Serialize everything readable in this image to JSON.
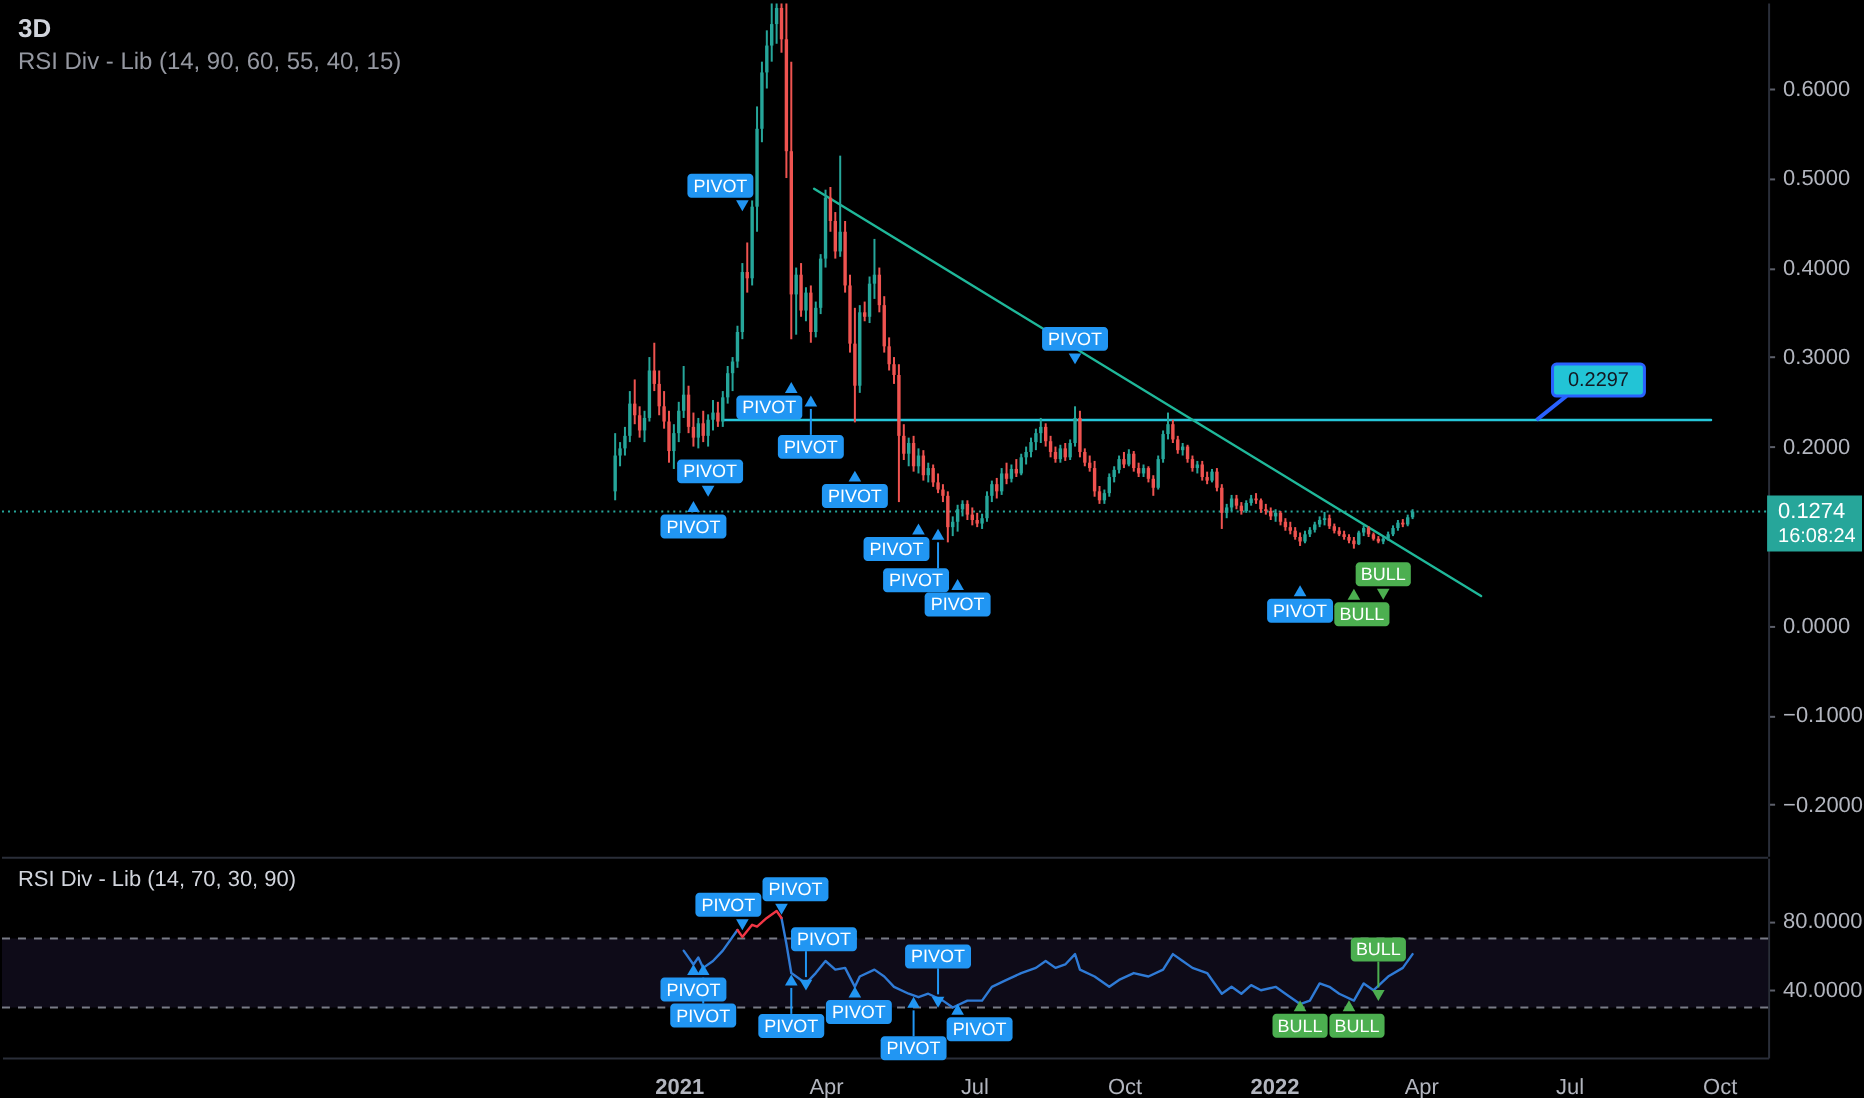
{
  "chart_data": [
    {
      "type": "candlestick",
      "title": "3D",
      "subtitle": "RSI Div - Lib (14, 90, 60, 55, 40, 15)",
      "xlim": [
        "2019-11-13",
        "2022-10-31"
      ],
      "ylim": [
        -0.257,
        0.696
      ],
      "yticks": [
        {
          "value": 0.6,
          "label": "0.6000"
        },
        {
          "value": 0.5,
          "label": "0.5000"
        },
        {
          "value": 0.4,
          "label": "0.4000"
        },
        {
          "value": 0.3,
          "label": "0.3000"
        },
        {
          "value": 0.2,
          "label": "0.2000"
        },
        {
          "value": 0,
          "label": "0.0000"
        },
        {
          "value": -0.1,
          "label": "−0.1000"
        },
        {
          "value": -0.2,
          "label": "−0.2000"
        }
      ],
      "tick_labels": "y",
      "x": [
        "2020-11-23",
        "2020-11-26",
        "2020-11-29",
        "2020-12-02",
        "2020-12-05",
        "2020-12-08",
        "2020-12-11",
        "2020-12-14",
        "2020-12-17",
        "2020-12-20",
        "2020-12-23",
        "2020-12-26",
        "2020-12-29",
        "2021-01-01",
        "2021-01-04",
        "2021-01-07",
        "2021-01-10",
        "2021-01-13",
        "2021-01-16",
        "2021-01-19",
        "2021-01-22",
        "2021-01-25",
        "2021-01-28",
        "2021-01-31",
        "2021-02-03",
        "2021-02-06",
        "2021-02-09",
        "2021-02-12",
        "2021-02-15",
        "2021-02-18",
        "2021-02-21",
        "2021-02-24",
        "2021-02-27",
        "2021-03-02",
        "2021-03-05",
        "2021-03-08",
        "2021-03-11",
        "2021-03-14",
        "2021-03-17",
        "2021-03-20",
        "2021-03-23",
        "2021-03-26",
        "2021-03-29",
        "2021-04-01",
        "2021-04-04",
        "2021-04-07",
        "2021-04-10",
        "2021-04-13",
        "2021-04-16",
        "2021-04-19",
        "2021-04-22",
        "2021-04-25",
        "2021-04-28",
        "2021-05-01",
        "2021-05-04",
        "2021-05-07",
        "2021-05-10",
        "2021-05-13",
        "2021-05-16",
        "2021-05-19",
        "2021-05-22",
        "2021-05-25",
        "2021-05-28",
        "2021-05-31",
        "2021-06-03",
        "2021-06-06",
        "2021-06-09",
        "2021-06-12",
        "2021-06-15",
        "2021-06-18",
        "2021-06-21",
        "2021-06-24",
        "2021-06-27",
        "2021-06-30",
        "2021-07-03",
        "2021-07-06",
        "2021-07-09",
        "2021-07-12",
        "2021-07-15",
        "2021-07-18",
        "2021-07-21",
        "2021-07-24",
        "2021-07-27",
        "2021-07-30",
        "2021-08-02",
        "2021-08-05",
        "2021-08-08",
        "2021-08-11",
        "2021-08-14",
        "2021-08-17",
        "2021-08-20",
        "2021-08-23",
        "2021-08-26",
        "2021-08-29",
        "2021-09-01",
        "2021-09-04",
        "2021-09-07",
        "2021-09-10",
        "2021-09-13",
        "2021-09-16",
        "2021-09-19",
        "2021-09-22",
        "2021-09-25",
        "2021-09-28",
        "2021-10-01",
        "2021-10-04",
        "2021-10-07",
        "2021-10-10",
        "2021-10-13",
        "2021-10-16",
        "2021-10-19",
        "2021-10-22",
        "2021-10-25",
        "2021-10-28",
        "2021-10-31",
        "2021-11-03",
        "2021-11-06",
        "2021-11-09",
        "2021-11-12",
        "2021-11-15",
        "2021-11-18",
        "2021-11-21",
        "2021-11-24",
        "2021-11-27",
        "2021-11-30",
        "2021-12-03",
        "2021-12-06",
        "2021-12-09",
        "2021-12-12",
        "2021-12-15",
        "2021-12-18",
        "2021-12-21",
        "2021-12-24",
        "2021-12-27",
        "2021-12-30",
        "2022-01-02",
        "2022-01-05",
        "2022-01-08",
        "2022-01-11",
        "2022-01-14",
        "2022-01-17",
        "2022-01-20",
        "2022-01-23",
        "2022-01-26",
        "2022-01-29",
        "2022-02-01",
        "2022-02-04",
        "2022-02-07",
        "2022-02-10",
        "2022-02-13",
        "2022-02-16",
        "2022-02-19",
        "2022-02-22",
        "2022-02-25",
        "2022-02-28",
        "2022-03-03",
        "2022-03-06",
        "2022-03-09",
        "2022-03-12",
        "2022-03-15",
        "2022-03-18",
        "2022-03-21",
        "2022-03-24",
        "2022-03-27"
      ],
      "ohlc": [
        [
          0.15,
          0.215,
          0.14,
          0.19
        ],
        [
          0.19,
          0.205,
          0.178,
          0.198
        ],
        [
          0.198,
          0.222,
          0.19,
          0.212
        ],
        [
          0.212,
          0.262,
          0.205,
          0.248
        ],
        [
          0.248,
          0.275,
          0.225,
          0.235
        ],
        [
          0.235,
          0.245,
          0.21,
          0.218
        ],
        [
          0.218,
          0.24,
          0.205,
          0.232
        ],
        [
          0.232,
          0.3,
          0.228,
          0.285
        ],
        [
          0.285,
          0.316,
          0.262,
          0.27
        ],
        [
          0.27,
          0.285,
          0.235,
          0.245
        ],
        [
          0.245,
          0.262,
          0.22,
          0.228
        ],
        [
          0.228,
          0.24,
          0.182,
          0.195
        ],
        [
          0.195,
          0.225,
          0.175,
          0.215
        ],
        [
          0.215,
          0.25,
          0.205,
          0.24
        ],
        [
          0.24,
          0.29,
          0.232,
          0.258
        ],
        [
          0.258,
          0.268,
          0.215,
          0.222
        ],
        [
          0.222,
          0.238,
          0.2,
          0.21
        ],
        [
          0.21,
          0.232,
          0.198,
          0.226
        ],
        [
          0.226,
          0.24,
          0.205,
          0.212
        ],
        [
          0.212,
          0.236,
          0.2,
          0.23
        ],
        [
          0.23,
          0.252,
          0.218,
          0.238
        ],
        [
          0.238,
          0.25,
          0.222,
          0.228
        ],
        [
          0.228,
          0.262,
          0.222,
          0.255
        ],
        [
          0.255,
          0.29,
          0.248,
          0.282
        ],
        [
          0.282,
          0.3,
          0.262,
          0.295
        ],
        [
          0.295,
          0.335,
          0.288,
          0.328
        ],
        [
          0.328,
          0.405,
          0.32,
          0.395
        ],
        [
          0.395,
          0.428,
          0.372,
          0.388
        ],
        [
          0.388,
          0.475,
          0.38,
          0.468
        ],
        [
          0.468,
          0.58,
          0.44,
          0.555
        ],
        [
          0.555,
          0.63,
          0.54,
          0.618
        ],
        [
          0.618,
          0.665,
          0.6,
          0.648
        ],
        [
          0.648,
          0.695,
          0.63,
          0.672
        ],
        [
          0.672,
          0.695,
          0.65,
          0.69
        ],
        [
          0.69,
          0.695,
          0.64,
          0.655
        ],
        [
          0.655,
          0.695,
          0.5,
          0.53
        ],
        [
          0.53,
          0.63,
          0.32,
          0.37
        ],
        [
          0.37,
          0.4,
          0.325,
          0.392
        ],
        [
          0.392,
          0.405,
          0.345,
          0.352
        ],
        [
          0.352,
          0.378,
          0.34,
          0.372
        ],
        [
          0.372,
          0.38,
          0.316,
          0.328
        ],
        [
          0.328,
          0.362,
          0.322,
          0.355
        ],
        [
          0.355,
          0.415,
          0.348,
          0.41
        ],
        [
          0.41,
          0.487,
          0.4,
          0.478
        ],
        [
          0.478,
          0.49,
          0.44,
          0.452
        ],
        [
          0.452,
          0.462,
          0.41,
          0.418
        ],
        [
          0.418,
          0.525,
          0.412,
          0.44
        ],
        [
          0.44,
          0.452,
          0.372,
          0.38
        ],
        [
          0.38,
          0.392,
          0.305,
          0.315
        ],
        [
          0.315,
          0.355,
          0.227,
          0.268
        ],
        [
          0.268,
          0.358,
          0.26,
          0.35
        ],
        [
          0.35,
          0.362,
          0.34,
          0.345
        ],
        [
          0.345,
          0.39,
          0.338,
          0.382
        ],
        [
          0.382,
          0.432,
          0.365,
          0.392
        ],
        [
          0.392,
          0.4,
          0.35,
          0.358
        ],
        [
          0.358,
          0.368,
          0.305,
          0.312
        ],
        [
          0.312,
          0.322,
          0.285,
          0.292
        ],
        [
          0.292,
          0.3,
          0.27,
          0.28
        ],
        [
          0.28,
          0.292,
          0.138,
          0.212
        ],
        [
          0.212,
          0.225,
          0.185,
          0.192
        ],
        [
          0.192,
          0.21,
          0.178,
          0.204
        ],
        [
          0.204,
          0.212,
          0.172,
          0.178
        ],
        [
          0.178,
          0.198,
          0.17,
          0.19
        ],
        [
          0.19,
          0.196,
          0.162,
          0.168
        ],
        [
          0.168,
          0.182,
          0.16,
          0.176
        ],
        [
          0.176,
          0.18,
          0.155,
          0.16
        ],
        [
          0.16,
          0.17,
          0.148,
          0.152
        ],
        [
          0.152,
          0.158,
          0.138,
          0.145
        ],
        [
          0.145,
          0.15,
          0.093,
          0.11
        ],
        [
          0.11,
          0.122,
          0.1,
          0.116
        ],
        [
          0.116,
          0.135,
          0.105,
          0.13
        ],
        [
          0.13,
          0.14,
          0.122,
          0.136
        ],
        [
          0.136,
          0.14,
          0.118,
          0.124
        ],
        [
          0.124,
          0.132,
          0.112,
          0.118
        ],
        [
          0.118,
          0.126,
          0.11,
          0.114
        ],
        [
          0.114,
          0.125,
          0.108,
          0.12
        ],
        [
          0.12,
          0.15,
          0.116,
          0.145
        ],
        [
          0.145,
          0.162,
          0.138,
          0.158
        ],
        [
          0.158,
          0.165,
          0.142,
          0.15
        ],
        [
          0.15,
          0.176,
          0.146,
          0.17
        ],
        [
          0.17,
          0.182,
          0.158,
          0.164
        ],
        [
          0.164,
          0.18,
          0.16,
          0.175
        ],
        [
          0.175,
          0.186,
          0.166,
          0.17
        ],
        [
          0.17,
          0.192,
          0.168,
          0.188
        ],
        [
          0.188,
          0.2,
          0.18,
          0.194
        ],
        [
          0.194,
          0.21,
          0.188,
          0.205
        ],
        [
          0.205,
          0.22,
          0.196,
          0.215
        ],
        [
          0.215,
          0.232,
          0.204,
          0.222
        ],
        [
          0.222,
          0.226,
          0.2,
          0.206
        ],
        [
          0.206,
          0.212,
          0.188,
          0.194
        ],
        [
          0.194,
          0.2,
          0.182,
          0.186
        ],
        [
          0.186,
          0.202,
          0.182,
          0.198
        ],
        [
          0.198,
          0.204,
          0.184,
          0.188
        ],
        [
          0.188,
          0.208,
          0.185,
          0.204
        ],
        [
          0.204,
          0.245,
          0.2,
          0.232
        ],
        [
          0.232,
          0.24,
          0.188,
          0.194
        ],
        [
          0.194,
          0.198,
          0.178,
          0.182
        ],
        [
          0.182,
          0.19,
          0.172,
          0.176
        ],
        [
          0.176,
          0.184,
          0.144,
          0.15
        ],
        [
          0.15,
          0.156,
          0.136,
          0.14
        ],
        [
          0.14,
          0.152,
          0.136,
          0.148
        ],
        [
          0.148,
          0.17,
          0.144,
          0.166
        ],
        [
          0.166,
          0.178,
          0.16,
          0.174
        ],
        [
          0.174,
          0.19,
          0.17,
          0.186
        ],
        [
          0.186,
          0.194,
          0.176,
          0.18
        ],
        [
          0.18,
          0.197,
          0.178,
          0.192
        ],
        [
          0.192,
          0.195,
          0.172,
          0.176
        ],
        [
          0.176,
          0.182,
          0.166,
          0.17
        ],
        [
          0.17,
          0.18,
          0.166,
          0.176
        ],
        [
          0.176,
          0.178,
          0.16,
          0.164
        ],
        [
          0.164,
          0.168,
          0.145,
          0.154
        ],
        [
          0.154,
          0.19,
          0.152,
          0.186
        ],
        [
          0.186,
          0.218,
          0.182,
          0.214
        ],
        [
          0.214,
          0.238,
          0.208,
          0.225
        ],
        [
          0.225,
          0.23,
          0.204,
          0.208
        ],
        [
          0.208,
          0.212,
          0.192,
          0.196
        ],
        [
          0.196,
          0.204,
          0.19,
          0.2
        ],
        [
          0.2,
          0.202,
          0.182,
          0.186
        ],
        [
          0.186,
          0.19,
          0.172,
          0.176
        ],
        [
          0.176,
          0.184,
          0.17,
          0.18
        ],
        [
          0.18,
          0.184,
          0.162,
          0.166
        ],
        [
          0.166,
          0.172,
          0.158,
          0.162
        ],
        [
          0.162,
          0.175,
          0.16,
          0.172
        ],
        [
          0.172,
          0.176,
          0.15,
          0.154
        ],
        [
          0.154,
          0.158,
          0.108,
          0.126
        ],
        [
          0.126,
          0.136,
          0.12,
          0.132
        ],
        [
          0.132,
          0.146,
          0.128,
          0.142
        ],
        [
          0.142,
          0.146,
          0.13,
          0.134
        ],
        [
          0.134,
          0.138,
          0.124,
          0.128
        ],
        [
          0.128,
          0.14,
          0.126,
          0.137
        ],
        [
          0.137,
          0.146,
          0.134,
          0.142
        ],
        [
          0.142,
          0.148,
          0.136,
          0.14
        ],
        [
          0.14,
          0.142,
          0.126,
          0.13
        ],
        [
          0.13,
          0.136,
          0.124,
          0.128
        ],
        [
          0.128,
          0.132,
          0.118,
          0.122
        ],
        [
          0.122,
          0.13,
          0.116,
          0.126
        ],
        [
          0.126,
          0.128,
          0.112,
          0.116
        ],
        [
          0.116,
          0.12,
          0.106,
          0.11
        ],
        [
          0.11,
          0.116,
          0.102,
          0.106
        ],
        [
          0.106,
          0.11,
          0.096,
          0.099
        ],
        [
          0.099,
          0.104,
          0.089,
          0.094
        ],
        [
          0.094,
          0.106,
          0.092,
          0.102
        ],
        [
          0.102,
          0.11,
          0.099,
          0.107
        ],
        [
          0.107,
          0.116,
          0.104,
          0.113
        ],
        [
          0.113,
          0.122,
          0.11,
          0.118
        ],
        [
          0.118,
          0.127,
          0.112,
          0.12
        ],
        [
          0.12,
          0.124,
          0.108,
          0.111
        ],
        [
          0.111,
          0.114,
          0.103,
          0.106
        ],
        [
          0.106,
          0.11,
          0.1,
          0.102
        ],
        [
          0.102,
          0.106,
          0.096,
          0.099
        ],
        [
          0.099,
          0.102,
          0.092,
          0.095
        ],
        [
          0.095,
          0.099,
          0.086,
          0.091
        ],
        [
          0.091,
          0.106,
          0.09,
          0.104
        ],
        [
          0.104,
          0.112,
          0.1,
          0.109
        ],
        [
          0.109,
          0.111,
          0.099,
          0.102
        ],
        [
          0.102,
          0.104,
          0.095,
          0.097
        ],
        [
          0.097,
          0.1,
          0.092,
          0.094
        ],
        [
          0.094,
          0.1,
          0.091,
          0.097
        ],
        [
          0.097,
          0.105,
          0.095,
          0.102
        ],
        [
          0.102,
          0.112,
          0.1,
          0.109
        ],
        [
          0.109,
          0.118,
          0.106,
          0.115
        ],
        [
          0.115,
          0.119,
          0.11,
          0.113
        ],
        [
          0.113,
          0.124,
          0.111,
          0.121
        ],
        [
          0.121,
          0.13,
          0.119,
          0.1274
        ]
      ],
      "colors": [
        "#26a69a",
        "#26a69a",
        "#26a69a",
        "#26a69a",
        "#ef5350",
        "#ef5350",
        "#26a69a",
        "#26a69a",
        "#ef5350",
        "#ef5350",
        "#ef5350",
        "#ef5350",
        "#26a69a",
        "#26a69a",
        "#26a69a",
        "#ef5350",
        "#ef5350",
        "#26a69a",
        "#ef5350",
        "#26a69a",
        "#26a69a",
        "#ef5350",
        "#26a69a",
        "#26a69a",
        "#26a69a",
        "#26a69a",
        "#26a69a",
        "#ef5350",
        "#26a69a",
        "#26a69a",
        "#26a69a",
        "#26a69a",
        "#26a69a",
        "#26a69a",
        "#ef5350",
        "#ef5350",
        "#ef5350",
        "#26a69a",
        "#ef5350",
        "#26a69a",
        "#ef5350",
        "#26a69a",
        "#26a69a",
        "#26a69a",
        "#ef5350",
        "#ef5350",
        "#26a69a",
        "#ef5350",
        "#ef5350",
        "#ef5350",
        "#26a69a",
        "#ef5350",
        "#26a69a",
        "#26a69a",
        "#ef5350",
        "#ef5350",
        "#ef5350",
        "#ef5350",
        "#ef5350",
        "#ef5350",
        "#26a69a",
        "#ef5350",
        "#26a69a",
        "#ef5350",
        "#26a69a",
        "#ef5350",
        "#ef5350",
        "#ef5350",
        "#ef5350",
        "#26a69a",
        "#26a69a",
        "#26a69a",
        "#ef5350",
        "#ef5350",
        "#ef5350",
        "#26a69a",
        "#26a69a",
        "#26a69a",
        "#ef5350",
        "#26a69a",
        "#ef5350",
        "#26a69a",
        "#ef5350",
        "#26a69a",
        "#26a69a",
        "#26a69a",
        "#26a69a",
        "#26a69a",
        "#ef5350",
        "#ef5350",
        "#ef5350",
        "#26a69a",
        "#ef5350",
        "#26a69a",
        "#26a69a",
        "#ef5350",
        "#ef5350",
        "#ef5350",
        "#ef5350",
        "#ef5350",
        "#26a69a",
        "#26a69a",
        "#26a69a",
        "#26a69a",
        "#ef5350",
        "#26a69a",
        "#ef5350",
        "#ef5350",
        "#26a69a",
        "#ef5350",
        "#ef5350",
        "#26a69a",
        "#26a69a",
        "#26a69a",
        "#ef5350",
        "#ef5350",
        "#26a69a",
        "#ef5350",
        "#ef5350",
        "#26a69a",
        "#ef5350",
        "#ef5350",
        "#26a69a",
        "#ef5350",
        "#ef5350",
        "#26a69a",
        "#26a69a",
        "#ef5350",
        "#ef5350",
        "#26a69a",
        "#26a69a",
        "#ef5350",
        "#ef5350",
        "#ef5350",
        "#ef5350",
        "#26a69a",
        "#ef5350",
        "#ef5350",
        "#ef5350",
        "#ef5350",
        "#ef5350",
        "#26a69a",
        "#26a69a",
        "#26a69a",
        "#26a69a",
        "#26a69a",
        "#ef5350",
        "#ef5350",
        "#ef5350",
        "#ef5350",
        "#ef5350",
        "#ef5350",
        "#26a69a",
        "#26a69a",
        "#ef5350",
        "#ef5350",
        "#ef5350",
        "#26a69a",
        "#26a69a",
        "#26a69a",
        "#26a69a",
        "#ef5350",
        "#26a69a",
        "#26a69a"
      ],
      "series": [
        {
          "type": "line",
          "color": "#26c6da",
          "x": [
            "2021-01-28",
            "2022-09-26"
          ],
          "values": [
            0.2297,
            0.2297
          ]
        },
        {
          "type": "line",
          "color": "#1fb89a",
          "x": [
            "2021-03-25",
            "2022-05-08"
          ],
          "values": [
            0.488,
            0.033
          ]
        },
        {
          "type": "scatter",
          "color": "#2196f3",
          "marker": "triangle",
          "x": [
            "2021-01-10",
            "2021-01-19",
            "2021-02-09",
            "2021-03-11",
            "2021-03-23",
            "2021-04-19",
            "2021-05-28",
            "2021-06-09",
            "2021-06-21",
            "2021-09-01",
            "2022-01-17"
          ],
          "values": [
            0.133,
            0.15,
            0.469,
            0.266,
            0.251,
            0.167,
            0.108,
            0.102,
            0.046,
            0.298,
            0.039
          ],
          "value_labels": [
            "PIVOT",
            "PIVOT",
            "PIVOT",
            "PIVOT",
            "PIVOT",
            "PIVOT",
            "PIVOT",
            "PIVOT",
            "PIVOT",
            "PIVOT",
            "PIVOT"
          ]
        },
        {
          "type": "scatter",
          "color": "#4caf50",
          "marker": "triangle",
          "x": [
            "2022-02-19",
            "2022-03-09"
          ],
          "values": [
            0.035,
            0.035
          ],
          "value_labels": [
            "BULL",
            "BULL"
          ]
        }
      ],
      "ref_lines": [
        {
          "axis": "y",
          "value": 0.1274,
          "label": "0.1274",
          "line_style": "dotted",
          "color": "#26a69a"
        }
      ],
      "annotations": [
        "16:08:24",
        {
          "text": "0.2297",
          "x": "2022-06-11",
          "y": 0.2297
        }
      ]
    },
    {
      "type": "line",
      "title": "RSI Div - Lib (14, 70, 30, 90)",
      "xlim": [
        "2019-11-13",
        "2022-10-31"
      ],
      "xticks": [
        {
          "value": "2021-01-01",
          "label": "2021"
        },
        {
          "value": "2021-04-01",
          "label": "Apr"
        },
        {
          "value": "2021-07-01",
          "label": "Jul"
        },
        {
          "value": "2021-10-01",
          "label": "Oct"
        },
        {
          "value": "2022-01-01",
          "label": "2022"
        },
        {
          "value": "2022-04-01",
          "label": "Apr"
        },
        {
          "value": "2022-07-01",
          "label": "Jul"
        },
        {
          "value": "2022-10-01",
          "label": "Oct"
        }
      ],
      "ylim": [
        1,
        117
      ],
      "yticks": [
        {
          "value": 80,
          "label": "80.0000"
        },
        {
          "value": 40,
          "label": "40.0000"
        }
      ],
      "bands": [
        {
          "axis": "y",
          "from": 30,
          "to": 70,
          "color": "#0e0b18"
        }
      ],
      "ref_lines": [
        {
          "axis": "y",
          "value": 70,
          "line_style": "dashed",
          "color": "#787b86"
        },
        {
          "axis": "y",
          "value": 30,
          "line_style": "dashed",
          "color": "#787b86"
        }
      ],
      "series": [
        {
          "color": "#2f7bd6",
          "x": [
            "2021-01-04",
            "2021-01-10",
            "2021-01-13",
            "2021-01-16",
            "2021-01-22",
            "2021-01-28",
            "2021-02-06",
            "2021-02-09",
            "2021-02-15",
            "2021-02-18",
            "2021-02-24",
            "2021-03-02",
            "2021-03-05",
            "2021-03-08",
            "2021-03-11",
            "2021-03-14",
            "2021-03-20",
            "2021-03-26",
            "2021-04-01",
            "2021-04-07",
            "2021-04-13",
            "2021-04-19",
            "2021-04-22",
            "2021-05-01",
            "2021-05-07",
            "2021-05-13",
            "2021-05-22",
            "2021-05-28",
            "2021-06-03",
            "2021-06-12",
            "2021-06-18",
            "2021-06-27",
            "2021-07-06",
            "2021-07-12",
            "2021-07-21",
            "2021-07-30",
            "2021-08-08",
            "2021-08-14",
            "2021-08-20",
            "2021-08-26",
            "2021-09-01",
            "2021-09-04",
            "2021-09-13",
            "2021-09-22",
            "2021-09-28",
            "2021-10-07",
            "2021-10-16",
            "2021-10-25",
            "2021-10-31",
            "2021-11-06",
            "2021-11-12",
            "2021-11-21",
            "2021-11-30",
            "2021-12-06",
            "2021-12-12",
            "2021-12-18",
            "2021-12-24",
            "2022-01-02",
            "2022-01-08",
            "2022-01-17",
            "2022-01-23",
            "2022-01-29",
            "2022-02-04",
            "2022-02-10",
            "2022-02-19",
            "2022-02-25",
            "2022-03-03",
            "2022-03-12",
            "2022-03-21",
            "2022-03-27"
          ],
          "values": [
            63,
            55,
            59,
            53,
            57,
            63,
            75,
            null,
            null,
            null,
            null,
            null,
            82,
            67,
            50,
            48,
            44,
            50,
            57,
            52,
            53,
            42,
            48,
            52,
            48,
            42,
            38,
            36,
            38,
            34,
            30,
            34,
            34,
            42,
            46,
            50,
            53,
            57,
            53,
            55,
            61,
            52,
            48,
            42,
            46,
            50,
            48,
            52,
            61,
            57,
            53,
            50,
            38,
            42,
            38,
            43,
            40,
            42,
            38,
            32,
            34,
            44,
            42,
            38,
            34,
            44,
            40,
            48,
            53,
            61
          ]
        },
        {
          "color": "#f23645",
          "x": [
            "2021-02-06",
            "2021-02-09",
            "2021-02-15",
            "2021-02-18",
            "2021-02-24",
            "2021-03-02",
            "2021-03-05"
          ],
          "values": [
            75,
            71,
            78,
            77,
            82,
            86,
            82
          ]
        },
        {
          "type": "scatter",
          "color": "#2196f3",
          "marker": "triangle",
          "x": [
            "2021-01-10",
            "2021-01-16",
            "2021-02-09",
            "2021-03-05",
            "2021-03-11",
            "2021-03-20",
            "2021-04-19",
            "2021-05-25",
            "2021-06-09",
            "2021-06-21"
          ],
          "values": [
            52,
            52,
            78,
            87,
            46,
            43,
            39,
            33,
            33,
            29
          ],
          "value_labels": [
            "PIVOT",
            "PIVOT",
            "PIVOT",
            "PIVOT",
            "PIVOT",
            "PIVOT",
            "PIVOT",
            "PIVOT",
            "PIVOT",
            "PIVOT"
          ]
        },
        {
          "type": "scatter",
          "color": "#4caf50",
          "marker": "triangle",
          "x": [
            "2022-01-17",
            "2022-02-16",
            "2022-03-06"
          ],
          "values": [
            31,
            31,
            37
          ],
          "value_labels": [
            "BULL",
            "BULL",
            "BULL"
          ]
        }
      ]
    }
  ]
}
